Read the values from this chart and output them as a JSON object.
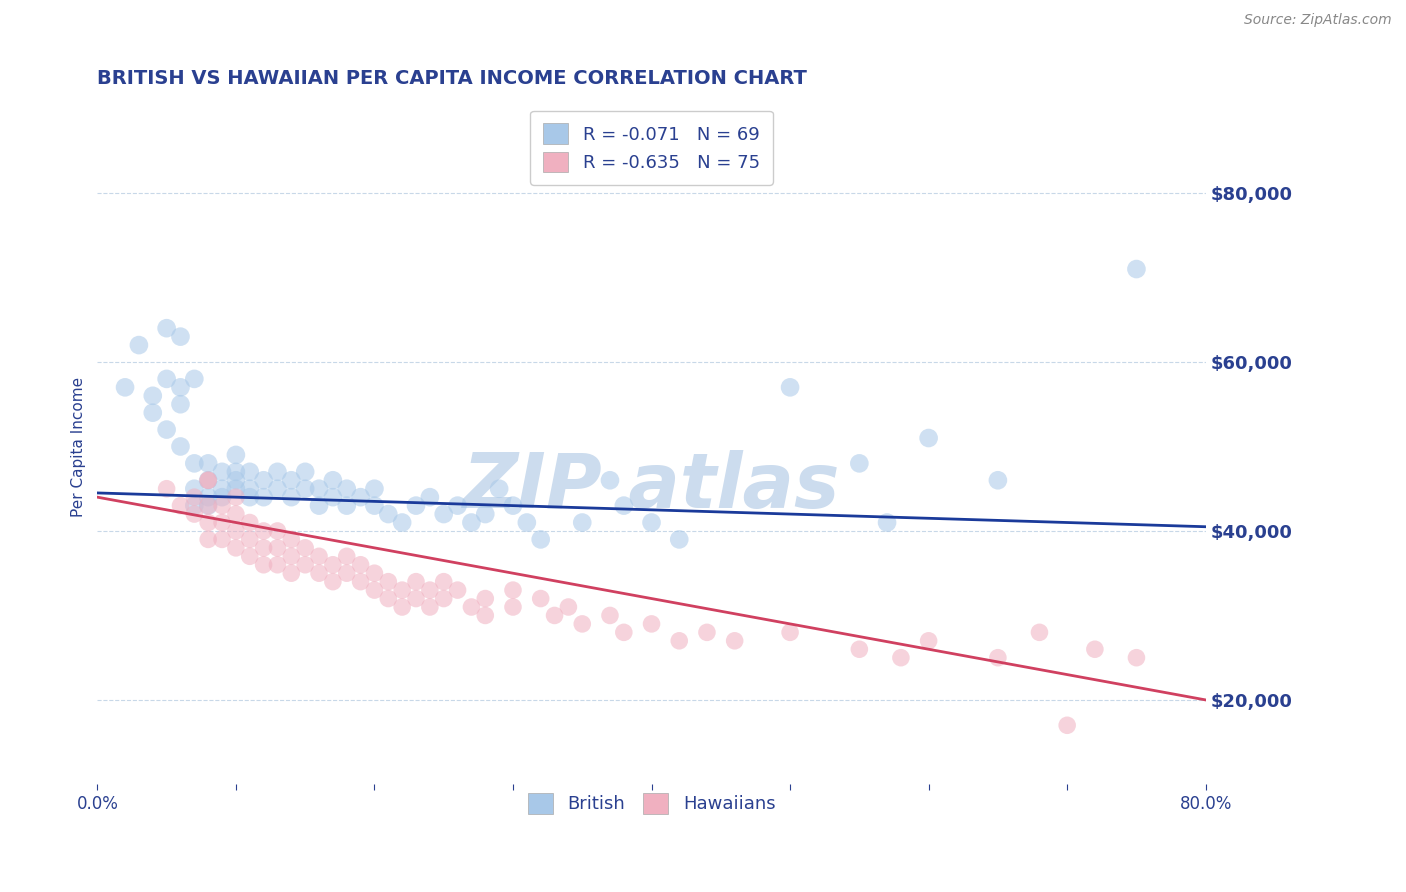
{
  "title": "BRITISH VS HAWAIIAN PER CAPITA INCOME CORRELATION CHART",
  "source_text": "Source: ZipAtlas.com",
  "ylabel": "Per Capita Income",
  "xlim": [
    0.0,
    0.8
  ],
  "ylim": [
    10000,
    90000
  ],
  "yticks": [
    20000,
    40000,
    60000,
    80000
  ],
  "ytick_labels": [
    "$20,000",
    "$40,000",
    "$60,000",
    "$80,000"
  ],
  "xticks": [
    0.0,
    0.1,
    0.2,
    0.3,
    0.4,
    0.5,
    0.6,
    0.7,
    0.8
  ],
  "xtick_labels": [
    "0.0%",
    "",
    "",
    "",
    "",
    "",
    "",
    "",
    "80.0%"
  ],
  "blue_color": "#a8c8e8",
  "pink_color": "#f0b0c0",
  "blue_line_color": "#1a3a9a",
  "pink_line_color": "#d04060",
  "title_color": "#2a4090",
  "axis_label_color": "#2a4090",
  "tick_color": "#2a4090",
  "grid_color": "#c8d8e8",
  "watermark_color": "#ccdcee",
  "legend_R1": "R = -0.071",
  "legend_N1": "N = 69",
  "legend_R2": "R = -0.635",
  "legend_N2": "N = 75",
  "legend_label1": "British",
  "legend_label2": "Hawaiians",
  "blue_intercept": 44500,
  "blue_slope": -5000,
  "pink_intercept": 44000,
  "pink_slope": -30000,
  "british_dots": [
    [
      0.02,
      57000
    ],
    [
      0.03,
      62000
    ],
    [
      0.04,
      56000
    ],
    [
      0.04,
      54000
    ],
    [
      0.05,
      52000
    ],
    [
      0.05,
      58000
    ],
    [
      0.05,
      64000
    ],
    [
      0.06,
      57000
    ],
    [
      0.06,
      55000
    ],
    [
      0.06,
      50000
    ],
    [
      0.07,
      48000
    ],
    [
      0.07,
      45000
    ],
    [
      0.07,
      58000
    ],
    [
      0.07,
      43000
    ],
    [
      0.08,
      46000
    ],
    [
      0.08,
      44000
    ],
    [
      0.08,
      48000
    ],
    [
      0.08,
      43000
    ],
    [
      0.09,
      45000
    ],
    [
      0.09,
      47000
    ],
    [
      0.09,
      44000
    ],
    [
      0.1,
      46000
    ],
    [
      0.1,
      45000
    ],
    [
      0.1,
      47000
    ],
    [
      0.1,
      49000
    ],
    [
      0.11,
      45000
    ],
    [
      0.11,
      47000
    ],
    [
      0.11,
      44000
    ],
    [
      0.12,
      46000
    ],
    [
      0.12,
      44000
    ],
    [
      0.13,
      47000
    ],
    [
      0.13,
      45000
    ],
    [
      0.14,
      46000
    ],
    [
      0.14,
      44000
    ],
    [
      0.15,
      45000
    ],
    [
      0.15,
      47000
    ],
    [
      0.16,
      45000
    ],
    [
      0.16,
      43000
    ],
    [
      0.17,
      44000
    ],
    [
      0.17,
      46000
    ],
    [
      0.18,
      43000
    ],
    [
      0.18,
      45000
    ],
    [
      0.19,
      44000
    ],
    [
      0.2,
      45000
    ],
    [
      0.2,
      43000
    ],
    [
      0.21,
      42000
    ],
    [
      0.22,
      41000
    ],
    [
      0.23,
      43000
    ],
    [
      0.24,
      44000
    ],
    [
      0.25,
      42000
    ],
    [
      0.26,
      43000
    ],
    [
      0.27,
      41000
    ],
    [
      0.28,
      42000
    ],
    [
      0.29,
      45000
    ],
    [
      0.3,
      43000
    ],
    [
      0.31,
      41000
    ],
    [
      0.32,
      39000
    ],
    [
      0.35,
      41000
    ],
    [
      0.37,
      46000
    ],
    [
      0.38,
      43000
    ],
    [
      0.4,
      41000
    ],
    [
      0.42,
      39000
    ],
    [
      0.5,
      57000
    ],
    [
      0.55,
      48000
    ],
    [
      0.57,
      41000
    ],
    [
      0.6,
      51000
    ],
    [
      0.65,
      46000
    ],
    [
      0.75,
      71000
    ],
    [
      0.06,
      63000
    ]
  ],
  "hawaiian_dots": [
    [
      0.05,
      45000
    ],
    [
      0.06,
      43000
    ],
    [
      0.07,
      44000
    ],
    [
      0.07,
      42000
    ],
    [
      0.08,
      43000
    ],
    [
      0.08,
      41000
    ],
    [
      0.08,
      39000
    ],
    [
      0.08,
      46000
    ],
    [
      0.09,
      43000
    ],
    [
      0.09,
      41000
    ],
    [
      0.09,
      39000
    ],
    [
      0.1,
      40000
    ],
    [
      0.1,
      38000
    ],
    [
      0.1,
      42000
    ],
    [
      0.1,
      44000
    ],
    [
      0.11,
      39000
    ],
    [
      0.11,
      41000
    ],
    [
      0.11,
      37000
    ],
    [
      0.12,
      38000
    ],
    [
      0.12,
      40000
    ],
    [
      0.12,
      36000
    ],
    [
      0.13,
      38000
    ],
    [
      0.13,
      36000
    ],
    [
      0.13,
      40000
    ],
    [
      0.14,
      37000
    ],
    [
      0.14,
      39000
    ],
    [
      0.14,
      35000
    ],
    [
      0.15,
      36000
    ],
    [
      0.15,
      38000
    ],
    [
      0.16,
      37000
    ],
    [
      0.16,
      35000
    ],
    [
      0.17,
      36000
    ],
    [
      0.17,
      34000
    ],
    [
      0.18,
      35000
    ],
    [
      0.18,
      37000
    ],
    [
      0.19,
      36000
    ],
    [
      0.19,
      34000
    ],
    [
      0.2,
      35000
    ],
    [
      0.2,
      33000
    ],
    [
      0.21,
      34000
    ],
    [
      0.21,
      32000
    ],
    [
      0.22,
      33000
    ],
    [
      0.22,
      31000
    ],
    [
      0.23,
      32000
    ],
    [
      0.23,
      34000
    ],
    [
      0.24,
      33000
    ],
    [
      0.24,
      31000
    ],
    [
      0.25,
      32000
    ],
    [
      0.25,
      34000
    ],
    [
      0.26,
      33000
    ],
    [
      0.27,
      31000
    ],
    [
      0.28,
      32000
    ],
    [
      0.28,
      30000
    ],
    [
      0.3,
      31000
    ],
    [
      0.3,
      33000
    ],
    [
      0.32,
      32000
    ],
    [
      0.33,
      30000
    ],
    [
      0.34,
      31000
    ],
    [
      0.35,
      29000
    ],
    [
      0.37,
      30000
    ],
    [
      0.38,
      28000
    ],
    [
      0.4,
      29000
    ],
    [
      0.42,
      27000
    ],
    [
      0.44,
      28000
    ],
    [
      0.46,
      27000
    ],
    [
      0.5,
      28000
    ],
    [
      0.55,
      26000
    ],
    [
      0.58,
      25000
    ],
    [
      0.6,
      27000
    ],
    [
      0.65,
      25000
    ],
    [
      0.68,
      28000
    ],
    [
      0.7,
      17000
    ],
    [
      0.72,
      26000
    ],
    [
      0.75,
      25000
    ],
    [
      0.08,
      46000
    ]
  ],
  "dot_size_british": 180,
  "dot_size_hawaiian": 160,
  "dot_alpha": 0.55,
  "background_color": "#ffffff",
  "fig_width": 14.06,
  "fig_height": 8.92
}
